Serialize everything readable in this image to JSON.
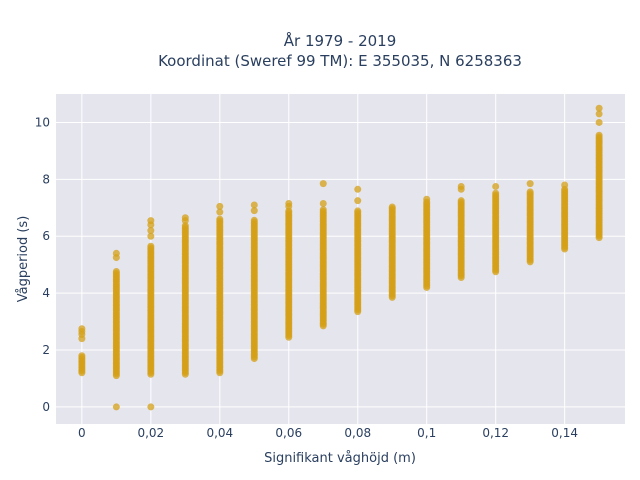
{
  "chart_data": {
    "type": "scatter",
    "title_lines": [
      "År 1979 - 2019",
      "Koordinat (Sweref 99 TM): E 355035, N 6258363"
    ],
    "xlabel": "Signifikant våghöjd (m)",
    "ylabel": "Vågperiod (s)",
    "xlim": [
      -0.0075,
      0.1575
    ],
    "ylim": [
      -0.6,
      11.0
    ],
    "x_ticks": [
      0,
      0.02,
      0.04,
      0.06,
      0.08,
      0.1,
      0.12,
      0.14
    ],
    "x_tick_labels": [
      "0",
      "0,02",
      "0,04",
      "0,06",
      "0,08",
      "0,1",
      "0,12",
      "0,14"
    ],
    "y_ticks": [
      0,
      2,
      4,
      6,
      8,
      10
    ],
    "y_tick_labels": [
      "0",
      "2",
      "4",
      "6",
      "8",
      "10"
    ],
    "marker_color": "#d4a017",
    "plot_bg": "#e5e5ee",
    "grid": true,
    "columns": [
      {
        "x": 0.0,
        "ymin": 1.2,
        "ymax": 1.85,
        "outliers": [
          2.4,
          2.55,
          2.65,
          2.75
        ]
      },
      {
        "x": 0.01,
        "ymin": 1.1,
        "ymax": 4.8,
        "outliers": [
          0.0,
          5.25,
          5.4
        ]
      },
      {
        "x": 0.02,
        "ymin": 1.15,
        "ymax": 5.7,
        "outliers": [
          0.0,
          6.0,
          6.2,
          6.4,
          6.55
        ]
      },
      {
        "x": 0.03,
        "ymin": 1.15,
        "ymax": 6.4,
        "outliers": [
          6.55,
          6.65
        ]
      },
      {
        "x": 0.04,
        "ymin": 1.2,
        "ymax": 6.6,
        "outliers": [
          6.85,
          7.05
        ]
      },
      {
        "x": 0.05,
        "ymin": 1.7,
        "ymax": 6.6,
        "outliers": [
          6.9,
          7.1
        ]
      },
      {
        "x": 0.06,
        "ymin": 2.45,
        "ymax": 6.9,
        "outliers": [
          7.05,
          7.15
        ]
      },
      {
        "x": 0.07,
        "ymin": 2.85,
        "ymax": 6.95,
        "outliers": [
          7.15,
          7.85
        ]
      },
      {
        "x": 0.08,
        "ymin": 3.35,
        "ymax": 6.9,
        "outliers": [
          7.25,
          7.65
        ]
      },
      {
        "x": 0.09,
        "ymin": 3.85,
        "ymax": 7.05,
        "outliers": []
      },
      {
        "x": 0.1,
        "ymin": 4.2,
        "ymax": 7.2,
        "outliers": [
          7.3
        ]
      },
      {
        "x": 0.11,
        "ymin": 4.55,
        "ymax": 7.3,
        "outliers": [
          7.65,
          7.75
        ]
      },
      {
        "x": 0.12,
        "ymin": 4.75,
        "ymax": 7.55,
        "outliers": [
          7.75
        ]
      },
      {
        "x": 0.13,
        "ymin": 5.1,
        "ymax": 7.6,
        "outliers": [
          7.85
        ]
      },
      {
        "x": 0.14,
        "ymin": 5.55,
        "ymax": 7.65,
        "outliers": [
          7.8
        ]
      },
      {
        "x": 0.15,
        "ymin": 5.95,
        "ymax": 9.6,
        "outliers": [
          10.0,
          10.3,
          10.5
        ]
      }
    ]
  }
}
